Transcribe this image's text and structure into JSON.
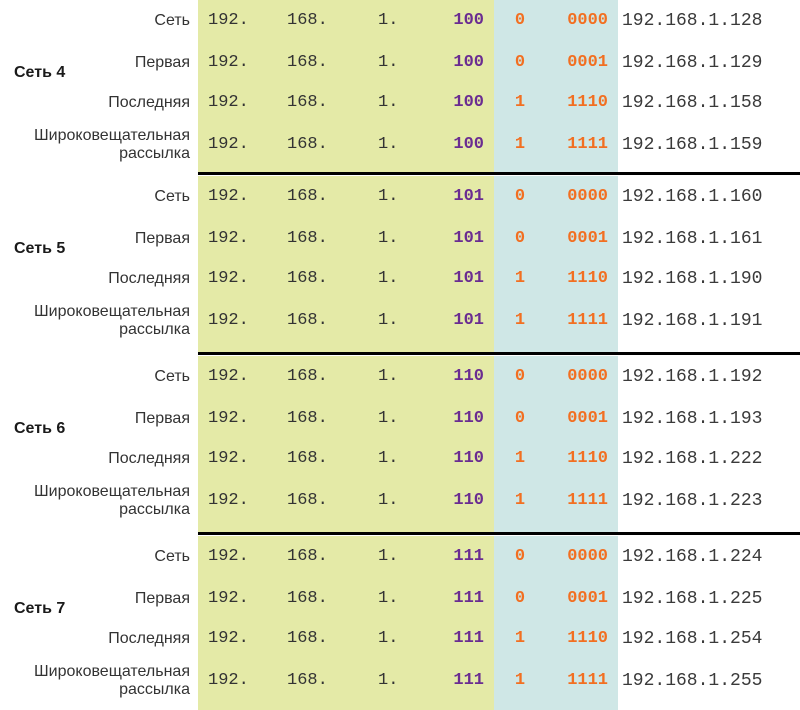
{
  "colors": {
    "host_octets_bg": "#e4eaa7",
    "host_bits_bg": "#cfe7e6",
    "subnet_bits": "#6a2c91",
    "host_bits": "#f26f21",
    "separator": "#000000"
  },
  "groups": [
    {
      "label": "Сеть 4",
      "rows": [
        {
          "label": [
            "Сеть"
          ],
          "o1": "192.",
          "o2": "168.",
          "o3": "1.",
          "subnet": "100",
          "host_hi": "0",
          "host_lo": "0000",
          "ip": "192.168.1.128"
        },
        {
          "label": [
            "Первая"
          ],
          "o1": "192.",
          "o2": "168.",
          "o3": "1.",
          "subnet": "100",
          "host_hi": "0",
          "host_lo": "0001",
          "ip": "192.168.1.129"
        },
        {
          "label": [
            "Последняя"
          ],
          "o1": "192.",
          "o2": "168.",
          "o3": "1.",
          "subnet": "100",
          "host_hi": "1",
          "host_lo": "1110",
          "ip": "192.168.1.158"
        },
        {
          "label": [
            "Широковещательная",
            "рассылка"
          ],
          "o1": "192.",
          "o2": "168.",
          "o3": "1.",
          "subnet": "100",
          "host_hi": "1",
          "host_lo": "1111",
          "ip": "192.168.1.159"
        }
      ]
    },
    {
      "label": "Сеть 5",
      "rows": [
        {
          "label": [
            "Сеть"
          ],
          "o1": "192.",
          "o2": "168.",
          "o3": "1.",
          "subnet": "101",
          "host_hi": "0",
          "host_lo": "0000",
          "ip": "192.168.1.160"
        },
        {
          "label": [
            "Первая"
          ],
          "o1": "192.",
          "o2": "168.",
          "o3": "1.",
          "subnet": "101",
          "host_hi": "0",
          "host_lo": "0001",
          "ip": "192.168.1.161"
        },
        {
          "label": [
            "Последняя"
          ],
          "o1": "192.",
          "o2": "168.",
          "o3": "1.",
          "subnet": "101",
          "host_hi": "1",
          "host_lo": "1110",
          "ip": "192.168.1.190"
        },
        {
          "label": [
            "Широковещательная",
            "рассылка"
          ],
          "o1": "192.",
          "o2": "168.",
          "o3": "1.",
          "subnet": "101",
          "host_hi": "1",
          "host_lo": "1111",
          "ip": "192.168.1.191"
        }
      ]
    },
    {
      "label": "Сеть 6",
      "rows": [
        {
          "label": [
            "Сеть"
          ],
          "o1": "192.",
          "o2": "168.",
          "o3": "1.",
          "subnet": "110",
          "host_hi": "0",
          "host_lo": "0000",
          "ip": "192.168.1.192"
        },
        {
          "label": [
            "Первая"
          ],
          "o1": "192.",
          "o2": "168.",
          "o3": "1.",
          "subnet": "110",
          "host_hi": "0",
          "host_lo": "0001",
          "ip": "192.168.1.193"
        },
        {
          "label": [
            "Последняя"
          ],
          "o1": "192.",
          "o2": "168.",
          "o3": "1.",
          "subnet": "110",
          "host_hi": "1",
          "host_lo": "1110",
          "ip": "192.168.1.222"
        },
        {
          "label": [
            "Широковещательная",
            "рассылка"
          ],
          "o1": "192.",
          "o2": "168.",
          "o3": "1.",
          "subnet": "110",
          "host_hi": "1",
          "host_lo": "1111",
          "ip": "192.168.1.223"
        }
      ]
    },
    {
      "label": "Сеть 7",
      "rows": [
        {
          "label": [
            "Сеть"
          ],
          "o1": "192.",
          "o2": "168.",
          "o3": "1.",
          "subnet": "111",
          "host_hi": "0",
          "host_lo": "0000",
          "ip": "192.168.1.224"
        },
        {
          "label": [
            "Первая"
          ],
          "o1": "192.",
          "o2": "168.",
          "o3": "1.",
          "subnet": "111",
          "host_hi": "0",
          "host_lo": "0001",
          "ip": "192.168.1.225"
        },
        {
          "label": [
            "Последняя"
          ],
          "o1": "192.",
          "o2": "168.",
          "o3": "1.",
          "subnet": "111",
          "host_hi": "1",
          "host_lo": "1110",
          "ip": "192.168.1.254"
        },
        {
          "label": [
            "Широковещательная",
            "рассылка"
          ],
          "o1": "192.",
          "o2": "168.",
          "o3": "1.",
          "subnet": "111",
          "host_hi": "1",
          "host_lo": "1111",
          "ip": "192.168.1.255"
        }
      ]
    }
  ]
}
